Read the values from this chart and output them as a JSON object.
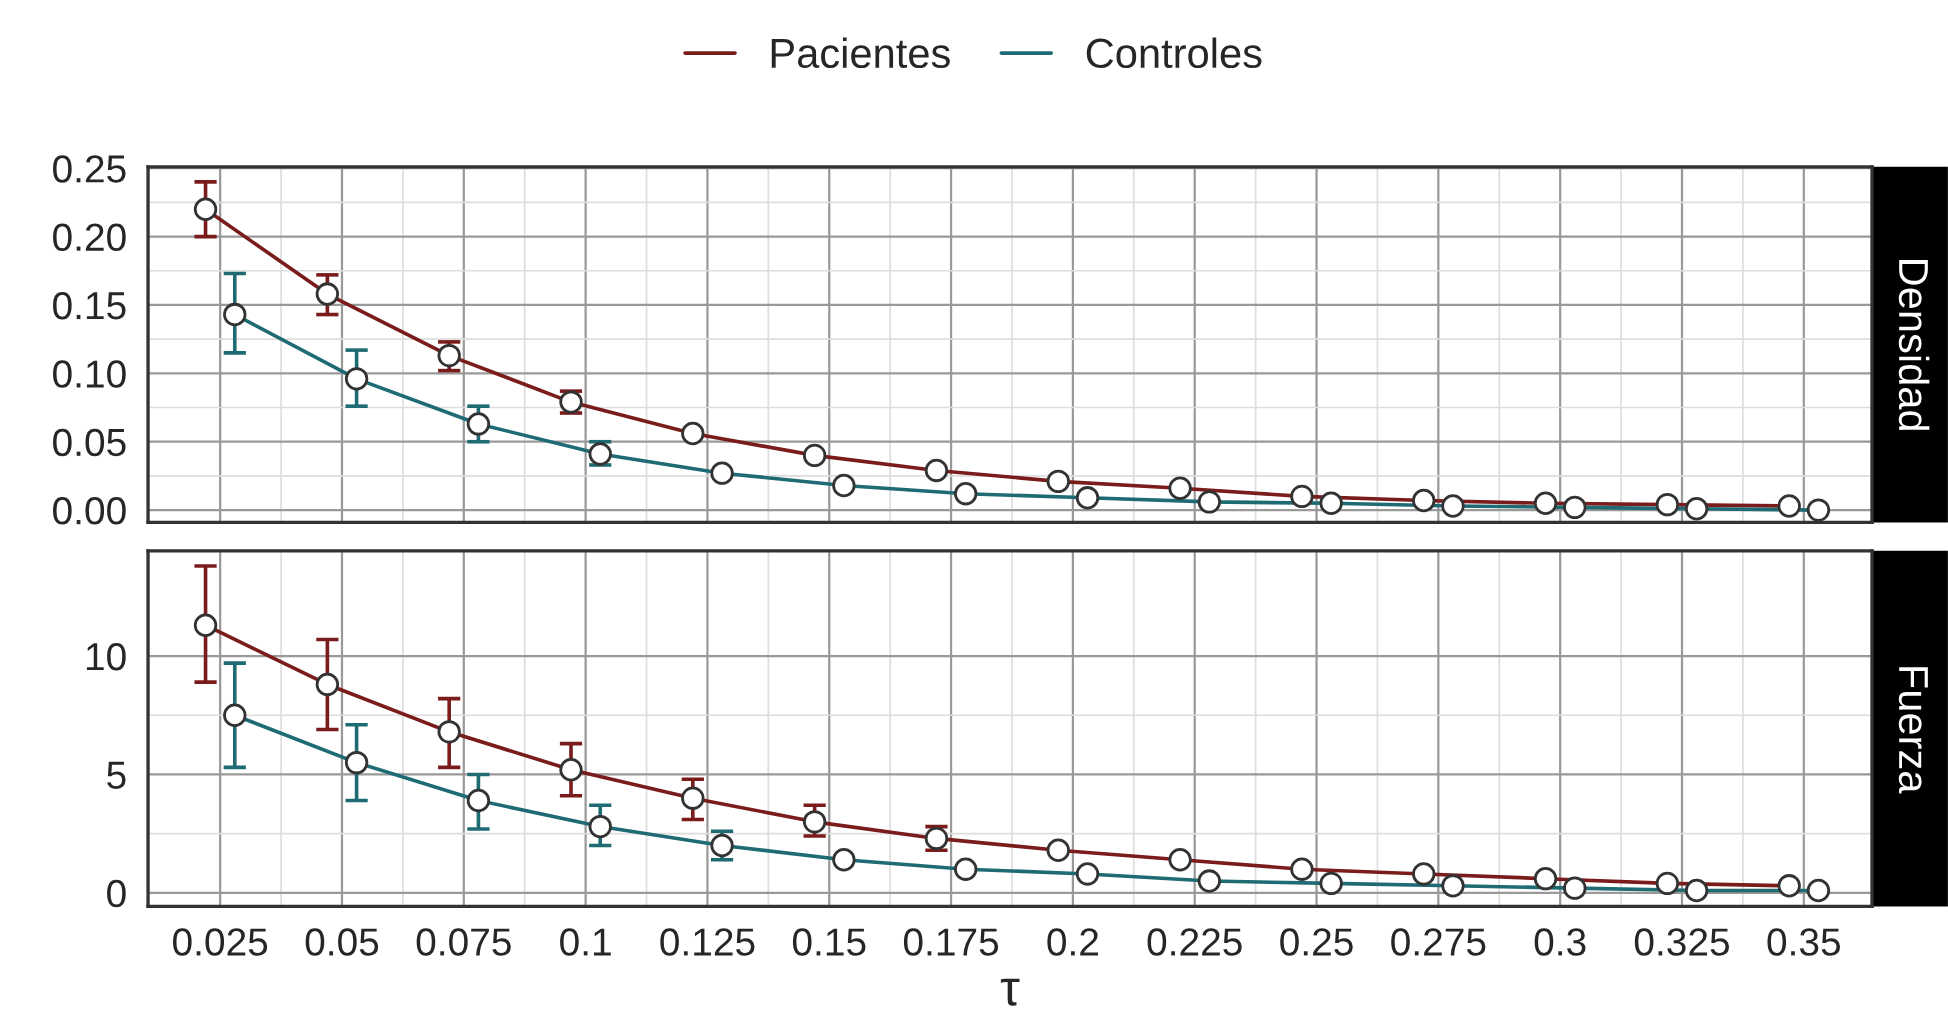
{
  "chart_data": [
    {
      "type": "line",
      "ylabel": "Densidad",
      "legend": "top",
      "marker": "circle",
      "line_style": "solid",
      "grid": true,
      "tick_labels": "y",
      "xlim": [
        0.0102,
        0.364
      ],
      "xticks": [
        0.025,
        0.05,
        0.075,
        0.1,
        0.125,
        0.15,
        0.175,
        0.2,
        0.225,
        0.25,
        0.275,
        0.3,
        0.325,
        0.35
      ],
      "ylim": [
        -0.009,
        0.251
      ],
      "yticks": [
        {
          "value": 0,
          "label": "0.00"
        },
        {
          "value": 0.05,
          "label": "0.05"
        },
        {
          "value": 0.1,
          "label": "0.10"
        },
        {
          "value": 0.15,
          "label": "0.15"
        },
        {
          "value": 0.2,
          "label": "0.20"
        },
        {
          "value": 0.25,
          "label": "0.25"
        }
      ],
      "series": [
        {
          "name": "Pacientes",
          "color": "#7b1c1c",
          "x": [
            0.022,
            0.047,
            0.072,
            0.097,
            0.122,
            0.147,
            0.172,
            0.197,
            0.222,
            0.247,
            0.272,
            0.297,
            0.322,
            0.347
          ],
          "values": [
            0.22,
            0.158,
            0.113,
            0.079,
            0.056,
            0.04,
            0.029,
            0.021,
            0.016,
            0.01,
            0.007,
            0.005,
            0.004,
            0.003
          ],
          "errors": [
            [
              0.2,
              0.24
            ],
            [
              0.143,
              0.172
            ],
            [
              0.102,
              0.123
            ],
            [
              0.071,
              0.087
            ],
            null,
            null,
            null,
            null,
            null,
            null,
            null,
            null,
            null,
            null
          ]
        },
        {
          "name": "Controles",
          "color": "#1f6b73",
          "x": [
            0.028,
            0.053,
            0.078,
            0.103,
            0.128,
            0.153,
            0.178,
            0.203,
            0.228,
            0.253,
            0.278,
            0.303,
            0.328,
            0.353
          ],
          "values": [
            0.143,
            0.096,
            0.063,
            0.041,
            0.027,
            0.018,
            0.012,
            0.009,
            0.006,
            0.005,
            0.003,
            0.002,
            0.001,
            0.0
          ],
          "errors": [
            [
              0.115,
              0.173
            ],
            [
              0.076,
              0.117
            ],
            [
              0.05,
              0.076
            ],
            [
              0.033,
              0.05
            ],
            null,
            null,
            null,
            null,
            null,
            null,
            null,
            null,
            null,
            null
          ]
        }
      ]
    },
    {
      "type": "line",
      "ylabel": "Fuerza",
      "xlabel": "τ",
      "marker": "circle",
      "line_style": "solid",
      "grid": true,
      "xlim": [
        0.0102,
        0.364
      ],
      "xticks": [
        0.025,
        0.05,
        0.075,
        0.1,
        0.125,
        0.15,
        0.175,
        0.2,
        0.225,
        0.25,
        0.275,
        0.3,
        0.325,
        0.35
      ],
      "ylim": [
        -0.57,
        14.44
      ],
      "yticks": [
        0,
        5,
        10
      ],
      "series": [
        {
          "name": "Pacientes",
          "color": "#7b1c1c",
          "x": [
            0.022,
            0.047,
            0.072,
            0.097,
            0.122,
            0.147,
            0.172,
            0.197,
            0.222,
            0.247,
            0.272,
            0.297,
            0.322,
            0.347
          ],
          "values": [
            11.3,
            8.8,
            6.8,
            5.2,
            4.0,
            3.0,
            2.3,
            1.8,
            1.4,
            1.0,
            0.8,
            0.6,
            0.4,
            0.3
          ],
          "errors": [
            [
              8.9,
              13.8
            ],
            [
              6.9,
              10.7
            ],
            [
              5.3,
              8.2
            ],
            [
              4.1,
              6.3
            ],
            [
              3.1,
              4.8
            ],
            [
              2.4,
              3.7
            ],
            [
              1.8,
              2.8
            ],
            null,
            null,
            null,
            null,
            null,
            null,
            null
          ]
        },
        {
          "name": "Controles",
          "color": "#1f6b73",
          "x": [
            0.028,
            0.053,
            0.078,
            0.103,
            0.128,
            0.153,
            0.178,
            0.203,
            0.228,
            0.253,
            0.278,
            0.303,
            0.328,
            0.353
          ],
          "values": [
            7.5,
            5.5,
            3.9,
            2.8,
            2.0,
            1.4,
            1.0,
            0.8,
            0.5,
            0.4,
            0.3,
            0.2,
            0.1,
            0.1
          ],
          "errors": [
            [
              5.3,
              9.7
            ],
            [
              3.9,
              7.1
            ],
            [
              2.7,
              5.0
            ],
            [
              2.0,
              3.7
            ],
            [
              1.4,
              2.6
            ],
            null,
            null,
            null,
            null,
            null,
            null,
            null,
            null,
            null
          ]
        }
      ]
    }
  ]
}
